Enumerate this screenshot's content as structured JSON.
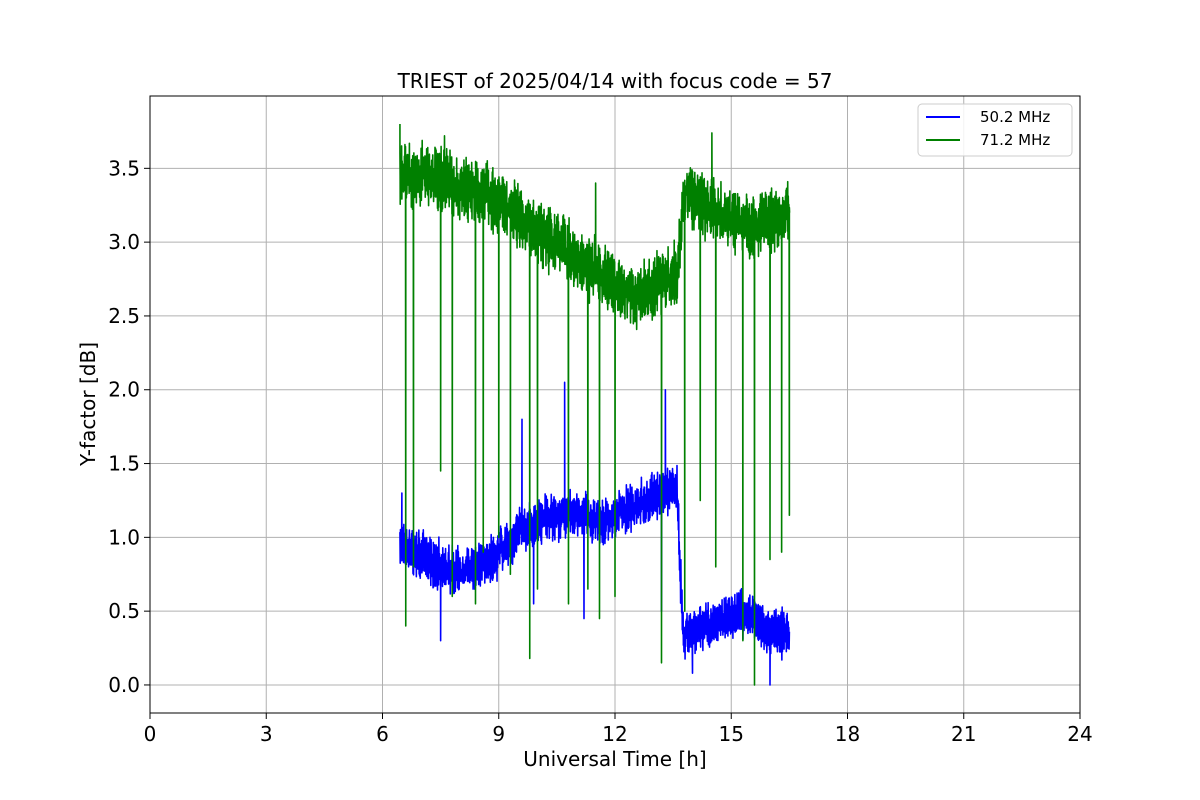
{
  "chart_data": {
    "type": "line",
    "title": "TRIEST of 2025/04/14 with focus code = 57",
    "xlabel": "Universal Time [h]",
    "ylabel": "Y-factor [dB]",
    "xlim": [
      0,
      24
    ],
    "ylim": [
      -0.19,
      3.99
    ],
    "xticks": [
      0,
      3,
      6,
      9,
      12,
      15,
      18,
      21,
      24
    ],
    "xtick_labels": [
      "0",
      "3",
      "6",
      "9",
      "12",
      "15",
      "18",
      "21",
      "24"
    ],
    "yticks": [
      0.0,
      0.5,
      1.0,
      1.5,
      2.0,
      2.5,
      3.0,
      3.5
    ],
    "ytick_labels": [
      "0.0",
      "0.5",
      "1.0",
      "1.5",
      "2.0",
      "2.5",
      "3.0",
      "3.5"
    ],
    "grid": true,
    "legend_position": "top-right",
    "series": [
      {
        "name": "50.2 MHz",
        "color": "#0000ff",
        "noise": 0.3,
        "x": [
          6.45,
          6.8,
          7.2,
          7.6,
          8.0,
          8.4,
          8.8,
          9.2,
          9.6,
          10.0,
          10.4,
          10.8,
          11.2,
          11.6,
          12.0,
          12.4,
          12.8,
          13.2,
          13.6,
          13.75,
          14.0,
          14.4,
          14.8,
          15.2,
          15.6,
          16.0,
          16.5
        ],
        "y": [
          0.95,
          0.9,
          0.85,
          0.8,
          0.75,
          0.8,
          0.85,
          0.95,
          1.05,
          1.1,
          1.15,
          1.15,
          1.15,
          1.1,
          1.15,
          1.2,
          1.25,
          1.3,
          1.35,
          0.35,
          0.35,
          0.4,
          0.45,
          0.5,
          0.45,
          0.35,
          0.35
        ],
        "spikes_up": [
          [
            6.5,
            1.3
          ],
          [
            10.7,
            2.05
          ],
          [
            13.3,
            2.0
          ],
          [
            9.6,
            1.8
          ]
        ],
        "spikes_down": [
          [
            7.5,
            0.3
          ],
          [
            9.9,
            0.55
          ],
          [
            11.2,
            0.45
          ],
          [
            13.2,
            0.5
          ],
          [
            14.0,
            0.08
          ],
          [
            16.0,
            0.0
          ]
        ]
      },
      {
        "name": "71.2 MHz",
        "color": "#008000",
        "noise": 0.4,
        "x": [
          6.45,
          6.8,
          7.2,
          7.6,
          8.0,
          8.4,
          8.8,
          9.2,
          9.6,
          10.0,
          10.4,
          10.8,
          11.2,
          11.6,
          12.0,
          12.4,
          12.8,
          13.2,
          13.6,
          13.8,
          14.2,
          14.6,
          15.0,
          15.4,
          15.8,
          16.2,
          16.5
        ],
        "y": [
          3.45,
          3.45,
          3.45,
          3.45,
          3.35,
          3.35,
          3.3,
          3.25,
          3.15,
          3.05,
          3.0,
          2.95,
          2.85,
          2.8,
          2.7,
          2.65,
          2.65,
          2.75,
          2.8,
          3.35,
          3.25,
          3.2,
          3.15,
          3.1,
          3.15,
          3.15,
          3.2
        ],
        "spikes_up": [
          [
            6.45,
            3.8
          ],
          [
            7.6,
            3.72
          ],
          [
            11.5,
            3.4
          ],
          [
            14.5,
            3.74
          ]
        ],
        "spikes_down": [
          [
            6.6,
            0.4
          ],
          [
            6.8,
            0.8
          ],
          [
            7.5,
            1.45
          ],
          [
            7.8,
            0.6
          ],
          [
            8.4,
            0.55
          ],
          [
            8.6,
            0.9
          ],
          [
            9.0,
            1.0
          ],
          [
            9.3,
            0.75
          ],
          [
            9.8,
            0.18
          ],
          [
            10.0,
            0.65
          ],
          [
            10.8,
            0.55
          ],
          [
            11.3,
            0.65
          ],
          [
            11.6,
            0.45
          ],
          [
            12.0,
            0.6
          ],
          [
            13.2,
            0.15
          ],
          [
            13.8,
            0.5
          ],
          [
            14.2,
            1.25
          ],
          [
            14.6,
            0.8
          ],
          [
            15.3,
            0.3
          ],
          [
            15.6,
            0.0
          ],
          [
            16.0,
            0.85
          ],
          [
            16.3,
            0.9
          ],
          [
            16.5,
            1.15
          ]
        ]
      }
    ]
  }
}
